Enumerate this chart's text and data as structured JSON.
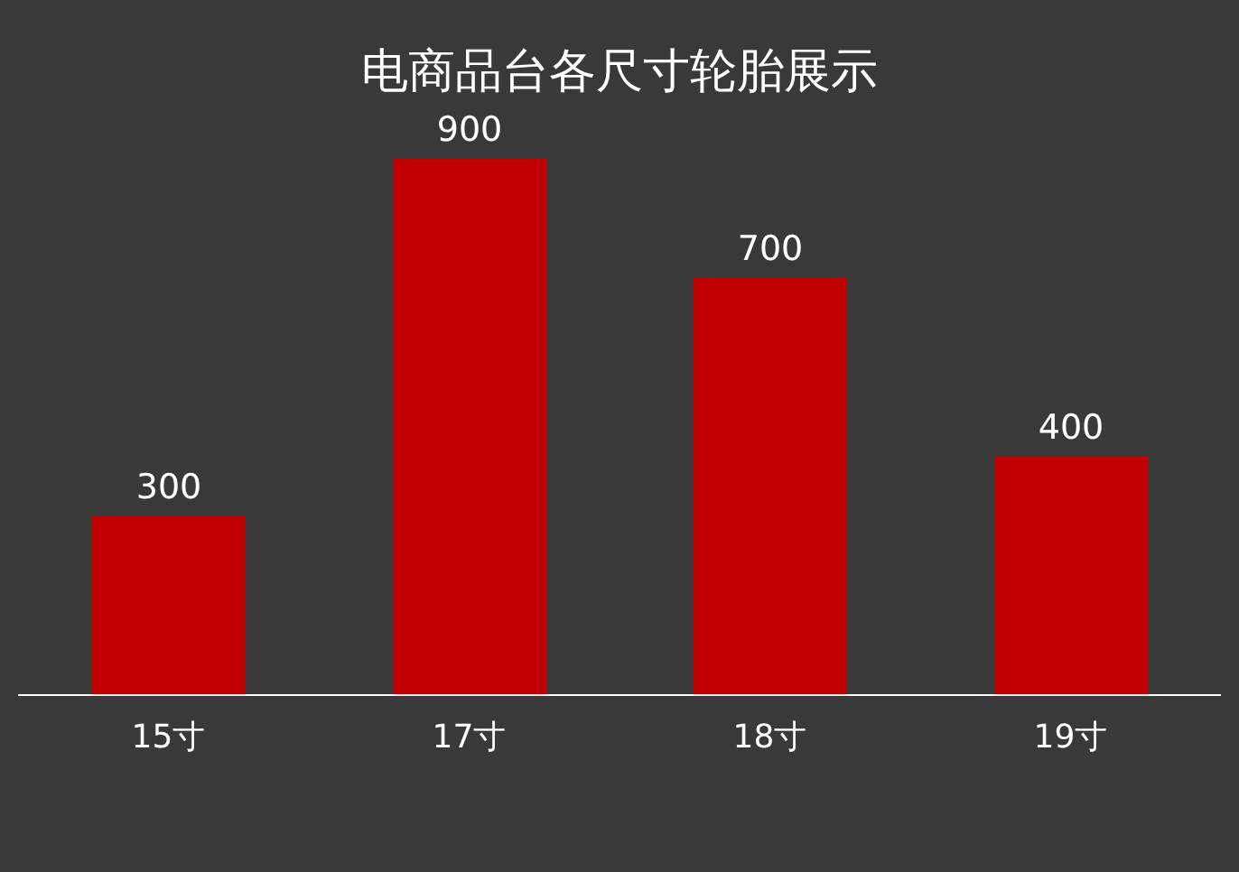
{
  "chart_data": {
    "type": "bar",
    "title": "电商品台各尺寸轮胎展示",
    "categories": [
      "15寸",
      "17寸",
      "18寸",
      "19寸"
    ],
    "values": [
      300,
      900,
      700,
      400
    ],
    "color": "#c00000",
    "data_labels": true,
    "grid": false,
    "legend": false
  }
}
